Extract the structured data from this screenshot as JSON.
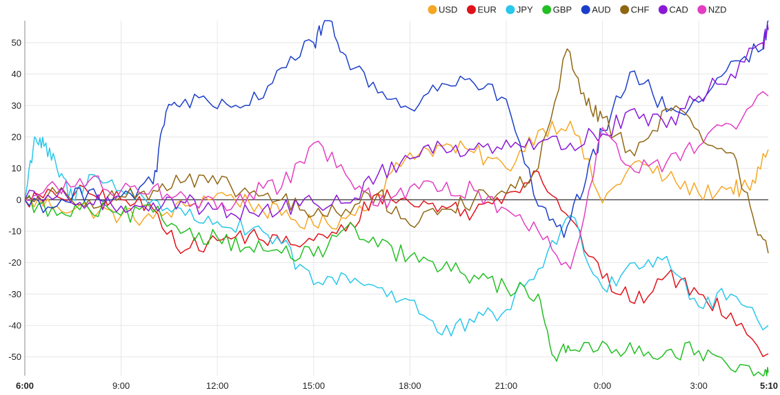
{
  "chart_data": {
    "type": "line",
    "title": "",
    "xlabel": "",
    "ylabel": "",
    "x_ticks": [
      {
        "label": "6:00",
        "bold": true,
        "h": 0
      },
      {
        "label": "9:00",
        "bold": false,
        "h": 3
      },
      {
        "label": "12:00",
        "bold": false,
        "h": 6
      },
      {
        "label": "15:00",
        "bold": false,
        "h": 9
      },
      {
        "label": "18:00",
        "bold": false,
        "h": 12
      },
      {
        "label": "21:00",
        "bold": false,
        "h": 15
      },
      {
        "label": "0:00",
        "bold": false,
        "h": 18
      },
      {
        "label": "3:00",
        "bold": false,
        "h": 21
      },
      {
        "label": "5:10",
        "bold": true,
        "h": 23.1667
      }
    ],
    "xlim": [
      0,
      23.1667
    ],
    "ylim": [
      -56,
      57
    ],
    "y_ticks": [
      50,
      40,
      30,
      20,
      10,
      0,
      -10,
      -20,
      -30,
      -40,
      -50
    ],
    "grid": true,
    "legend_position": "top-right",
    "series": [
      {
        "name": "USD",
        "color": "#f5a623",
        "points": [
          [
            0,
            0
          ],
          [
            1,
            -2
          ],
          [
            2,
            -3
          ],
          [
            3,
            -5
          ],
          [
            4,
            -6
          ],
          [
            5,
            -2
          ],
          [
            6,
            2
          ],
          [
            7,
            -1
          ],
          [
            8,
            -5
          ],
          [
            9,
            -8
          ],
          [
            10,
            -6
          ],
          [
            11,
            2
          ],
          [
            12,
            15
          ],
          [
            13,
            17
          ],
          [
            14,
            15
          ],
          [
            15,
            10
          ],
          [
            16,
            22
          ],
          [
            17,
            25
          ],
          [
            18,
            -1
          ],
          [
            19,
            12
          ],
          [
            20,
            7
          ],
          [
            21,
            2
          ],
          [
            22,
            4
          ],
          [
            22.6,
            3
          ],
          [
            23.1667,
            16
          ]
        ]
      },
      {
        "name": "EUR",
        "color": "#e0121a",
        "points": [
          [
            0,
            0
          ],
          [
            1,
            1
          ],
          [
            2,
            2
          ],
          [
            3,
            0
          ],
          [
            4,
            -3
          ],
          [
            5,
            -16
          ],
          [
            6,
            -13
          ],
          [
            7,
            -11
          ],
          [
            8,
            -14
          ],
          [
            9,
            -13
          ],
          [
            10,
            -10
          ],
          [
            11,
            2
          ],
          [
            12,
            -1
          ],
          [
            13,
            -2
          ],
          [
            14,
            -4
          ],
          [
            15,
            2
          ],
          [
            16,
            9
          ],
          [
            17,
            -6
          ],
          [
            18,
            -25
          ],
          [
            19,
            -33
          ],
          [
            20,
            -24
          ],
          [
            21,
            -30
          ],
          [
            22,
            -36
          ],
          [
            23.1667,
            -49
          ]
        ]
      },
      {
        "name": "JPY",
        "color": "#29c7ea",
        "points": [
          [
            0,
            0
          ],
          [
            0.3,
            20
          ],
          [
            0.6,
            17
          ],
          [
            1,
            10
          ],
          [
            1.5,
            0
          ],
          [
            2,
            8
          ],
          [
            3,
            3
          ],
          [
            4,
            0
          ],
          [
            5,
            -5
          ],
          [
            6,
            -7
          ],
          [
            7,
            -10
          ],
          [
            8,
            -14
          ],
          [
            9,
            -27
          ],
          [
            10,
            -24
          ],
          [
            11,
            -28
          ],
          [
            12,
            -32
          ],
          [
            13,
            -43
          ],
          [
            14,
            -39
          ],
          [
            15,
            -35
          ],
          [
            16,
            -22
          ],
          [
            17,
            -5
          ],
          [
            18,
            -28
          ],
          [
            19,
            -20
          ],
          [
            20,
            -18
          ],
          [
            21,
            -34
          ],
          [
            22,
            -30
          ],
          [
            23.1667,
            -40
          ]
        ]
      },
      {
        "name": "GBP",
        "color": "#22bf22",
        "points": [
          [
            0,
            0
          ],
          [
            1,
            -5
          ],
          [
            2,
            -3
          ],
          [
            3,
            -5
          ],
          [
            4,
            -4
          ],
          [
            5,
            -10
          ],
          [
            6,
            -12
          ],
          [
            7,
            -15
          ],
          [
            8,
            -17
          ],
          [
            9,
            -18
          ],
          [
            10,
            -9
          ],
          [
            11,
            -15
          ],
          [
            12,
            -18
          ],
          [
            13,
            -22
          ],
          [
            14,
            -24
          ],
          [
            15,
            -28
          ],
          [
            16,
            -30
          ],
          [
            16.5,
            -50
          ],
          [
            17,
            -48
          ],
          [
            18,
            -45
          ],
          [
            19,
            -49
          ],
          [
            20,
            -48
          ],
          [
            21,
            -48
          ],
          [
            22,
            -54
          ],
          [
            23,
            -56
          ],
          [
            23.1667,
            -55
          ]
        ]
      },
      {
        "name": "AUD",
        "color": "#1b3ec9",
        "points": [
          [
            0,
            0
          ],
          [
            1,
            -2
          ],
          [
            2,
            3
          ],
          [
            3,
            1
          ],
          [
            4,
            5
          ],
          [
            4.4,
            28
          ],
          [
            5,
            32
          ],
          [
            6,
            29
          ],
          [
            7,
            30
          ],
          [
            8,
            42
          ],
          [
            9,
            50
          ],
          [
            9.4,
            57
          ],
          [
            10,
            46
          ],
          [
            11,
            34
          ],
          [
            12,
            29
          ],
          [
            13,
            37
          ],
          [
            14,
            37
          ],
          [
            15,
            32
          ],
          [
            16,
            -2
          ],
          [
            16.8,
            -12
          ],
          [
            17.5,
            7
          ],
          [
            18,
            22
          ],
          [
            19,
            41
          ],
          [
            20,
            28
          ],
          [
            21,
            31
          ],
          [
            22,
            44
          ],
          [
            23,
            48
          ],
          [
            23.1667,
            57
          ]
        ]
      },
      {
        "name": "CHF",
        "color": "#8f6612",
        "points": [
          [
            0,
            0
          ],
          [
            1,
            2
          ],
          [
            2,
            0
          ],
          [
            3,
            1
          ],
          [
            4,
            3
          ],
          [
            5,
            6
          ],
          [
            6,
            5
          ],
          [
            7,
            2
          ],
          [
            8,
            0
          ],
          [
            9,
            -5
          ],
          [
            10,
            -3
          ],
          [
            11,
            2
          ],
          [
            12,
            -8
          ],
          [
            13,
            -3
          ],
          [
            14,
            0
          ],
          [
            15,
            2
          ],
          [
            16,
            10
          ],
          [
            16.9,
            48
          ],
          [
            17.5,
            30
          ],
          [
            18,
            26
          ],
          [
            19,
            14
          ],
          [
            20,
            29
          ],
          [
            21,
            22
          ],
          [
            22,
            15
          ],
          [
            22.6,
            -2
          ],
          [
            23.1667,
            -17
          ]
        ]
      },
      {
        "name": "CAD",
        "color": "#8a18d6",
        "points": [
          [
            0,
            0
          ],
          [
            1,
            1
          ],
          [
            2,
            -1
          ],
          [
            3,
            -2
          ],
          [
            4,
            -1
          ],
          [
            5,
            -1
          ],
          [
            6,
            -3
          ],
          [
            7,
            -4
          ],
          [
            8,
            -3
          ],
          [
            9,
            -1
          ],
          [
            10,
            -1
          ],
          [
            11,
            8
          ],
          [
            12,
            13
          ],
          [
            13,
            17
          ],
          [
            14,
            16
          ],
          [
            15,
            19
          ],
          [
            16,
            18
          ],
          [
            17,
            18
          ],
          [
            18,
            21
          ],
          [
            19,
            29
          ],
          [
            20,
            23
          ],
          [
            21,
            33
          ],
          [
            22,
            40
          ],
          [
            23,
            50
          ],
          [
            23.1667,
            54
          ]
        ]
      },
      {
        "name": "NZD",
        "color": "#e33ec2",
        "points": [
          [
            0,
            0
          ],
          [
            1,
            4
          ],
          [
            2,
            6
          ],
          [
            3,
            3
          ],
          [
            4,
            4
          ],
          [
            5,
            1
          ],
          [
            6,
            -3
          ],
          [
            7,
            2
          ],
          [
            8,
            4
          ],
          [
            9,
            18
          ],
          [
            10,
            8
          ],
          [
            11,
            -2
          ],
          [
            12,
            4
          ],
          [
            13,
            3
          ],
          [
            14,
            3
          ],
          [
            15,
            -3
          ],
          [
            16,
            -10
          ],
          [
            17,
            -22
          ],
          [
            18,
            23
          ],
          [
            19,
            9
          ],
          [
            20,
            12
          ],
          [
            21,
            17
          ],
          [
            22,
            24
          ],
          [
            23.1667,
            33
          ]
        ]
      }
    ]
  }
}
